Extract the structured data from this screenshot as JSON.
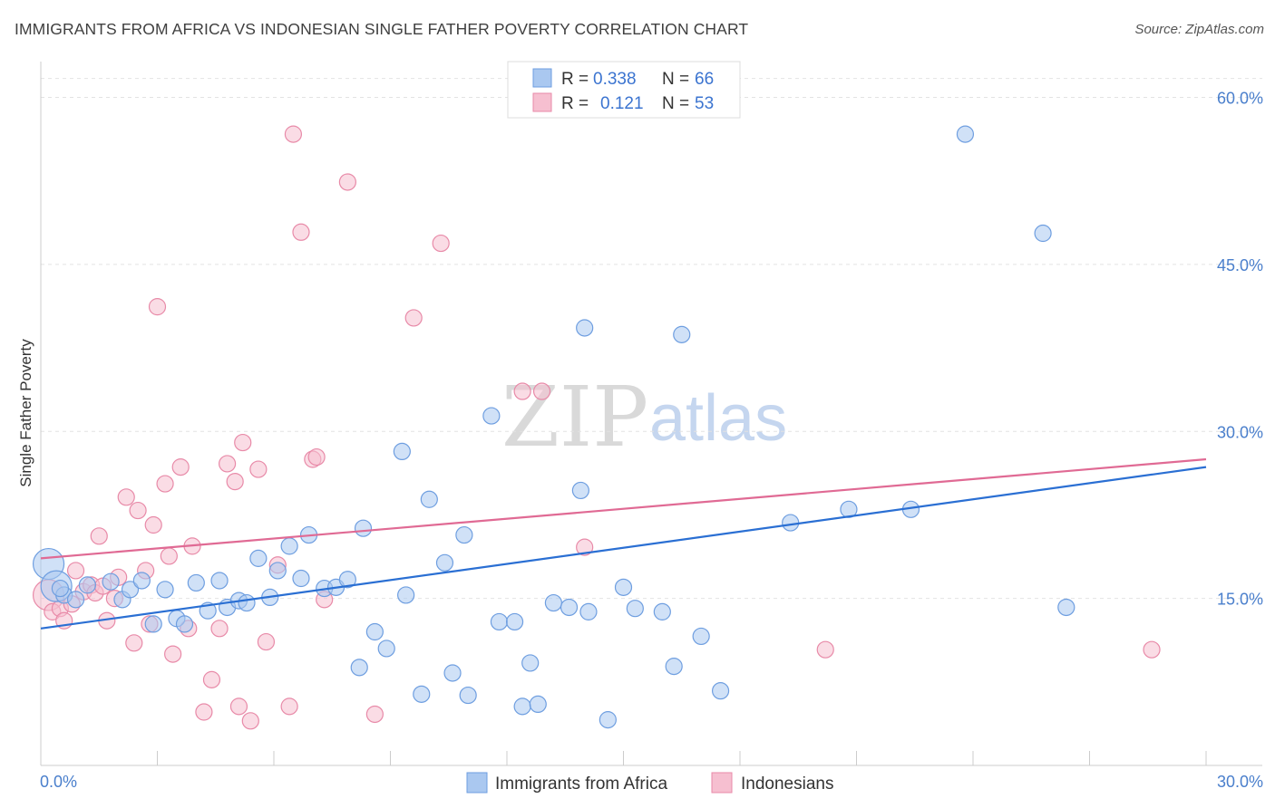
{
  "header": {
    "title": "IMMIGRANTS FROM AFRICA VS INDONESIAN SINGLE FATHER POVERTY CORRELATION CHART",
    "source": "Source: ZipAtlas.com"
  },
  "watermark": {
    "zip": "ZIP",
    "atlas": "atlas"
  },
  "colors": {
    "blue_fill": "#aac8f0",
    "blue_stroke": "#6e9ee0",
    "blue_line": "#2a6fd3",
    "pink_fill": "#f6bfd0",
    "pink_stroke": "#e88aa8",
    "pink_line": "#e06a94",
    "grid": "#e2e2e2",
    "axis_text": "#4a7fcc"
  },
  "legend": {
    "rows": [
      {
        "r_label": "R =",
        "r_value": "0.338",
        "n_label": "N =",
        "n_value": "66"
      },
      {
        "r_label": "R =",
        "r_value": "0.121",
        "n_label": "N =",
        "n_value": "53"
      }
    ]
  },
  "bottom_legend": [
    "Immigrants from Africa",
    "Indonesians"
  ],
  "chart_data": {
    "type": "scatter",
    "title": "IMMIGRANTS FROM AFRICA VS INDONESIAN SINGLE FATHER POVERTY CORRELATION CHART",
    "xlabel": "",
    "ylabel": "Single Father Poverty",
    "xlim": [
      0,
      30
    ],
    "ylim": [
      0,
      60
    ],
    "x_tick_labels": [
      "0.0%",
      "30.0%"
    ],
    "y_tick_labels": [
      "15.0%",
      "30.0%",
      "45.0%",
      "60.0%"
    ],
    "y_ticks": [
      15,
      30,
      45,
      60
    ],
    "legend_position": "top-center",
    "series": [
      {
        "name": "Immigrants from Africa",
        "color": "#aac8f0",
        "trend": {
          "x": [
            0,
            30
          ],
          "y": [
            12.3,
            26.8
          ]
        },
        "points": [
          {
            "x": 0.2,
            "y": 18.1,
            "big": true
          },
          {
            "x": 0.4,
            "y": 16.1,
            "big": true
          },
          {
            "x": 0.6,
            "y": 15.3
          },
          {
            "x": 0.9,
            "y": 14.9
          },
          {
            "x": 1.2,
            "y": 16.2
          },
          {
            "x": 1.8,
            "y": 16.5
          },
          {
            "x": 2.1,
            "y": 14.9
          },
          {
            "x": 2.3,
            "y": 15.8
          },
          {
            "x": 2.6,
            "y": 16.6
          },
          {
            "x": 2.9,
            "y": 12.7
          },
          {
            "x": 3.2,
            "y": 15.8
          },
          {
            "x": 3.5,
            "y": 13.2
          },
          {
            "x": 3.7,
            "y": 12.7
          },
          {
            "x": 4.0,
            "y": 16.4
          },
          {
            "x": 4.3,
            "y": 13.9
          },
          {
            "x": 4.6,
            "y": 16.6
          },
          {
            "x": 4.8,
            "y": 14.2
          },
          {
            "x": 5.1,
            "y": 14.8
          },
          {
            "x": 5.3,
            "y": 14.6
          },
          {
            "x": 5.6,
            "y": 18.6
          },
          {
            "x": 5.9,
            "y": 15.1
          },
          {
            "x": 6.1,
            "y": 17.5
          },
          {
            "x": 6.4,
            "y": 19.7
          },
          {
            "x": 6.7,
            "y": 16.8
          },
          {
            "x": 6.9,
            "y": 20.7
          },
          {
            "x": 7.3,
            "y": 15.9
          },
          {
            "x": 7.6,
            "y": 16.0
          },
          {
            "x": 7.9,
            "y": 16.7
          },
          {
            "x": 8.3,
            "y": 21.3
          },
          {
            "x": 8.6,
            "y": 12.0
          },
          {
            "x": 8.2,
            "y": 8.8
          },
          {
            "x": 8.9,
            "y": 10.5
          },
          {
            "x": 9.3,
            "y": 28.2
          },
          {
            "x": 9.4,
            "y": 15.3
          },
          {
            "x": 9.8,
            "y": 6.4
          },
          {
            "x": 10.0,
            "y": 23.9
          },
          {
            "x": 10.4,
            "y": 18.2
          },
          {
            "x": 10.6,
            "y": 8.3
          },
          {
            "x": 10.9,
            "y": 20.7
          },
          {
            "x": 11.0,
            "y": 6.3
          },
          {
            "x": 11.6,
            "y": 31.4
          },
          {
            "x": 11.8,
            "y": 12.9
          },
          {
            "x": 12.2,
            "y": 12.9
          },
          {
            "x": 12.6,
            "y": 9.2
          },
          {
            "x": 12.4,
            "y": 5.3
          },
          {
            "x": 12.8,
            "y": 5.5
          },
          {
            "x": 13.2,
            "y": 14.6
          },
          {
            "x": 13.6,
            "y": 14.2
          },
          {
            "x": 13.9,
            "y": 24.7
          },
          {
            "x": 14.1,
            "y": 13.8
          },
          {
            "x": 14.0,
            "y": 39.3
          },
          {
            "x": 14.6,
            "y": 4.1
          },
          {
            "x": 15.0,
            "y": 16.0
          },
          {
            "x": 15.3,
            "y": 14.1
          },
          {
            "x": 16.0,
            "y": 13.8
          },
          {
            "x": 16.3,
            "y": 8.9
          },
          {
            "x": 16.5,
            "y": 38.7
          },
          {
            "x": 17.0,
            "y": 11.6
          },
          {
            "x": 17.5,
            "y": 6.7
          },
          {
            "x": 19.3,
            "y": 21.8
          },
          {
            "x": 20.8,
            "y": 23.0
          },
          {
            "x": 22.4,
            "y": 23.0
          },
          {
            "x": 23.8,
            "y": 56.7
          },
          {
            "x": 25.8,
            "y": 47.8
          },
          {
            "x": 26.4,
            "y": 14.2
          },
          {
            "x": 0.5,
            "y": 15.9
          }
        ]
      },
      {
        "name": "Indonesians",
        "color": "#f6bfd0",
        "trend": {
          "x": [
            0,
            30
          ],
          "y": [
            18.6,
            27.5
          ]
        },
        "points": [
          {
            "x": 0.2,
            "y": 15.3,
            "big": true
          },
          {
            "x": 0.3,
            "y": 13.8
          },
          {
            "x": 0.5,
            "y": 14.1
          },
          {
            "x": 0.6,
            "y": 13.0
          },
          {
            "x": 0.8,
            "y": 14.5
          },
          {
            "x": 0.9,
            "y": 17.5
          },
          {
            "x": 1.1,
            "y": 15.6
          },
          {
            "x": 1.3,
            "y": 16.2
          },
          {
            "x": 1.4,
            "y": 15.5
          },
          {
            "x": 1.5,
            "y": 20.6
          },
          {
            "x": 1.7,
            "y": 13.0
          },
          {
            "x": 1.9,
            "y": 15.0
          },
          {
            "x": 2.0,
            "y": 16.9
          },
          {
            "x": 2.2,
            "y": 24.1
          },
          {
            "x": 2.4,
            "y": 11.0
          },
          {
            "x": 2.5,
            "y": 22.9
          },
          {
            "x": 2.7,
            "y": 17.5
          },
          {
            "x": 2.8,
            "y": 12.7
          },
          {
            "x": 2.9,
            "y": 21.6
          },
          {
            "x": 3.0,
            "y": 41.2
          },
          {
            "x": 3.2,
            "y": 25.3
          },
          {
            "x": 3.3,
            "y": 18.8
          },
          {
            "x": 3.4,
            "y": 10.0
          },
          {
            "x": 3.6,
            "y": 26.8
          },
          {
            "x": 3.8,
            "y": 12.3
          },
          {
            "x": 3.9,
            "y": 19.7
          },
          {
            "x": 4.2,
            "y": 4.8
          },
          {
            "x": 4.4,
            "y": 7.7
          },
          {
            "x": 4.6,
            "y": 12.3
          },
          {
            "x": 4.8,
            "y": 27.1
          },
          {
            "x": 5.0,
            "y": 25.5
          },
          {
            "x": 5.1,
            "y": 5.3
          },
          {
            "x": 5.2,
            "y": 29.0
          },
          {
            "x": 5.4,
            "y": 4.0
          },
          {
            "x": 5.6,
            "y": 26.6
          },
          {
            "x": 5.8,
            "y": 11.1
          },
          {
            "x": 6.1,
            "y": 18.0
          },
          {
            "x": 6.4,
            "y": 5.3
          },
          {
            "x": 6.5,
            "y": 56.7
          },
          {
            "x": 6.7,
            "y": 47.9
          },
          {
            "x": 7.0,
            "y": 27.5
          },
          {
            "x": 7.1,
            "y": 27.7
          },
          {
            "x": 7.3,
            "y": 14.9
          },
          {
            "x": 7.9,
            "y": 52.4
          },
          {
            "x": 8.6,
            "y": 4.6
          },
          {
            "x": 9.6,
            "y": 40.2
          },
          {
            "x": 10.3,
            "y": 46.9
          },
          {
            "x": 12.4,
            "y": 33.6
          },
          {
            "x": 12.9,
            "y": 33.6
          },
          {
            "x": 14.0,
            "y": 19.6
          },
          {
            "x": 20.2,
            "y": 10.4
          },
          {
            "x": 28.6,
            "y": 10.4
          },
          {
            "x": 1.6,
            "y": 16.1
          }
        ]
      }
    ]
  }
}
